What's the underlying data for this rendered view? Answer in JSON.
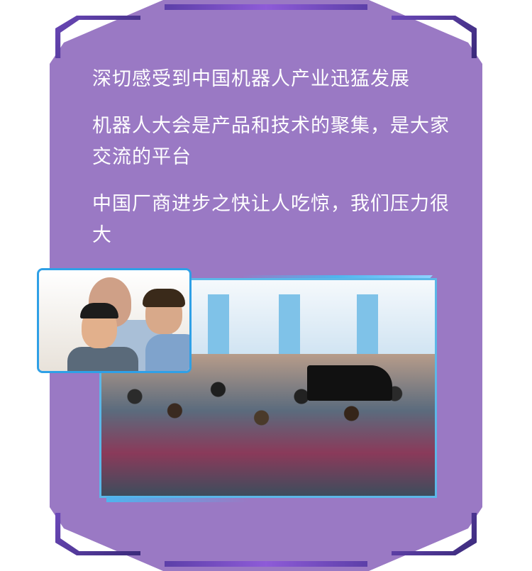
{
  "lines": [
    "深切感受到中国机器人产业迅猛发展",
    "机器人大会是产品和技术的聚集，是大家交流的平台",
    "中国厂商进步之快让人吃惊，我们压力很大"
  ],
  "colors": {
    "panel": "#9a79c4",
    "corner": "#4b2f96",
    "photo_border": "#2fa0e6",
    "text": "#ffffff"
  }
}
